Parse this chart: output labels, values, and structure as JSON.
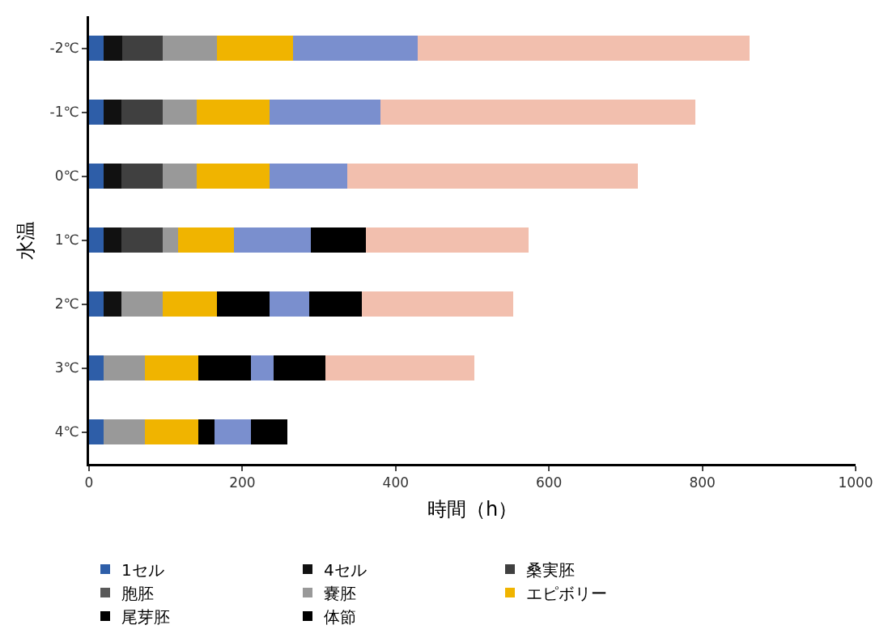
{
  "chart_data": {
    "type": "bar",
    "orientation": "horizontal",
    "stacked": true,
    "xlabel": "時間（h）",
    "ylabel": "水温",
    "categories": [
      "-2℃",
      "-1℃",
      "0℃",
      "1℃",
      "2℃",
      "3℃",
      "4℃"
    ],
    "xlim": [
      0,
      1000
    ],
    "xticks": [
      0,
      200,
      400,
      600,
      800,
      1000
    ],
    "legend": "bottom",
    "series": [
      {
        "name": "1セル",
        "color": "#2e5ea8",
        "values": [
          19,
          19,
          19,
          19,
          19,
          19,
          19
        ]
      },
      {
        "name": "4セル",
        "color": "#111111",
        "values": [
          24,
          23,
          23,
          23,
          23,
          0,
          0
        ]
      },
      {
        "name": "桑実胚",
        "color": "#404040",
        "values": [
          53,
          54,
          54,
          54,
          0,
          0,
          0
        ]
      },
      {
        "name": "胞胚",
        "color": "#595959",
        "values": [
          0,
          0,
          0,
          0,
          0,
          0,
          0
        ]
      },
      {
        "name": "嚢胚",
        "color": "#999999",
        "values": [
          71,
          44,
          44,
          20,
          54,
          54,
          54
        ]
      },
      {
        "name": "エピボリー",
        "color": "#f0b400",
        "values": [
          99,
          95,
          95,
          73,
          71,
          70,
          70
        ]
      },
      {
        "name": "尾芽胚",
        "color": "#000000",
        "values": [
          0,
          0,
          0,
          0,
          68,
          68,
          21
        ]
      },
      {
        "color": "#7a8fce",
        "values": [
          163,
          145,
          102,
          100,
          52,
          30,
          47
        ]
      },
      {
        "name": "体節",
        "color": "#000000",
        "values": [
          0,
          0,
          0,
          72,
          69,
          67,
          48
        ]
      },
      {
        "color": "#f2bfae",
        "values": [
          433,
          411,
          379,
          212,
          197,
          195,
          0
        ]
      }
    ]
  }
}
